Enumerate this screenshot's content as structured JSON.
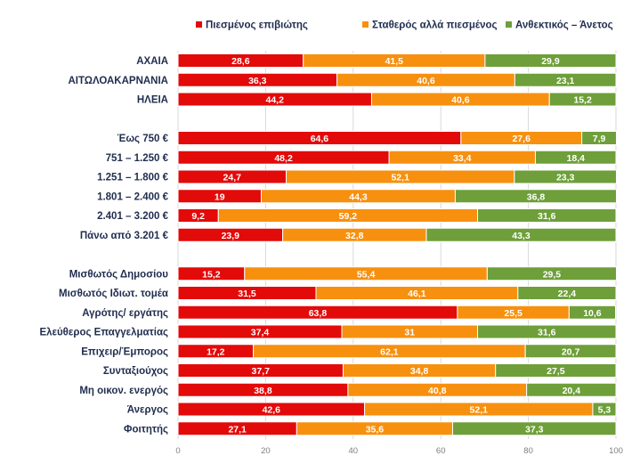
{
  "chart_data": {
    "type": "bar",
    "orientation": "horizontal",
    "stacked": true,
    "legend_position": "top",
    "grid": true,
    "xlim": [
      0,
      100
    ],
    "x_ticks": [
      "0",
      "20",
      "40",
      "60",
      "80",
      "100"
    ],
    "categories": [
      "ΑΧΑΙΑ",
      "ΑΙΤΩΛΟΑΚΑΡΝΑΝΙΑ",
      "ΗΛΕΙΑ",
      "",
      "Έως 750 €",
      "751 – 1.250 €",
      "1.251 – 1.800 €",
      "1.801 – 2.400 €",
      "2.401 – 3.200 €",
      "Πάνω από 3.201 €",
      "",
      "Μισθωτός Δημοσίου",
      "Μισθωτός Ιδιωτ. τομέα",
      "Αγρότης/ εργάτης",
      "Ελεύθερος Επαγγελματίας",
      "Επιχειρ/Έμπορος",
      "Συνταξιούχος",
      "Μη οικον. ενεργός",
      "Άνεργος",
      "Φοιτητής"
    ],
    "series": [
      {
        "name": "Πιεσμένος επιβιώτης",
        "color": "#e30a0a",
        "values": [
          28.6,
          36.3,
          44.2,
          null,
          64.6,
          48.2,
          24.7,
          19,
          9.2,
          23.9,
          null,
          15.2,
          31.5,
          63.8,
          37.4,
          17.2,
          37.7,
          38.8,
          42.6,
          27.1
        ]
      },
      {
        "name": "Σταθερός αλλά πιεσμένος",
        "color": "#f7900f",
        "values": [
          41.5,
          40.6,
          40.6,
          null,
          27.6,
          33.4,
          52.1,
          44.3,
          59.2,
          32.8,
          null,
          55.4,
          46.1,
          25.5,
          31,
          62.1,
          34.8,
          40.8,
          52.1,
          35.6
        ]
      },
      {
        "name": "Ανθεκτικός – Άνετος",
        "color": "#6e9f3a",
        "values": [
          29.9,
          23.1,
          15.2,
          null,
          7.9,
          18.4,
          23.3,
          36.8,
          31.6,
          43.3,
          null,
          29.5,
          22.4,
          10.6,
          31.6,
          20.7,
          27.5,
          20.4,
          5.3,
          37.3
        ]
      }
    ]
  }
}
